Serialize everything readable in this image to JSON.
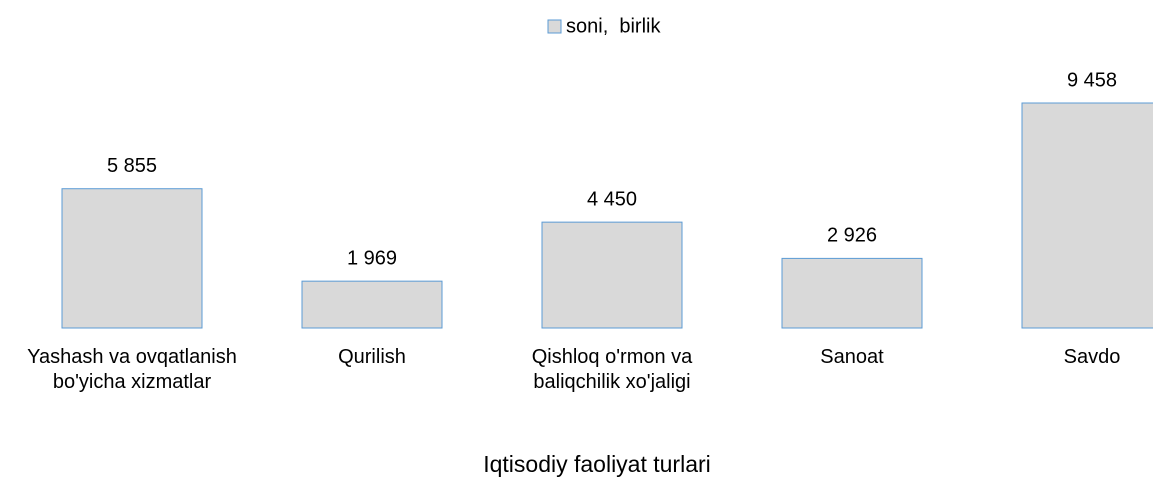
{
  "chart_data": {
    "type": "bar",
    "legend": "soni,  birlik",
    "x_label": "Iqtisodiy faoliyat turlari",
    "categories": [
      "Yashash va ovqatlanish bo'yicha xizmatlar",
      "Qurilish",
      "Qishloq o'rmon va baliqchilik xo'jaligi",
      "Sanoat",
      "Savdo"
    ],
    "values": [
      5855,
      1969,
      4450,
      2926,
      9458
    ],
    "value_labels": [
      "5 855",
      "1 969",
      "4 450",
      "2 926",
      "9 458"
    ],
    "color": "#d9d9d9"
  }
}
